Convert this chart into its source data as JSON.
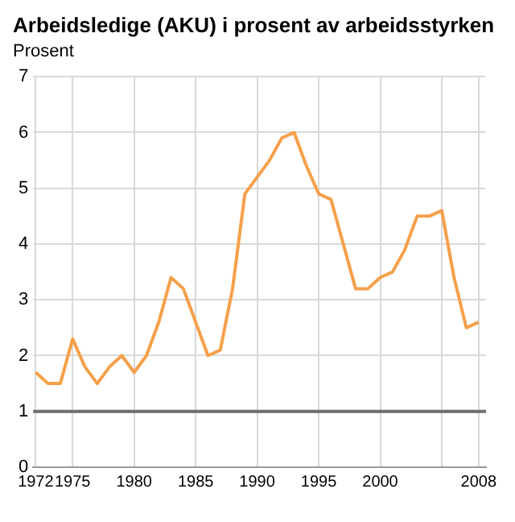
{
  "chart_data": {
    "type": "line",
    "title": "Arbeidsledige (AKU) i prosent av arbeidsstyrken",
    "ylabel": "Prosent",
    "x": [
      1972,
      1973,
      1974,
      1975,
      1976,
      1977,
      1978,
      1979,
      1980,
      1981,
      1982,
      1983,
      1984,
      1985,
      1986,
      1987,
      1988,
      1989,
      1990,
      1991,
      1992,
      1993,
      1994,
      1995,
      1996,
      1997,
      1998,
      1999,
      2000,
      2001,
      2002,
      2003,
      2004,
      2005,
      2006,
      2007,
      2008
    ],
    "series": [
      {
        "color": "#f5a04a",
        "values": [
          1.7,
          1.5,
          1.5,
          2.3,
          1.8,
          1.5,
          1.8,
          2.0,
          1.7,
          2.0,
          2.6,
          3.4,
          3.2,
          2.6,
          2.0,
          2.1,
          3.2,
          4.9,
          5.2,
          5.5,
          5.9,
          6.0,
          5.4,
          4.9,
          4.8,
          4.0,
          3.2,
          3.2,
          3.4,
          3.5,
          3.9,
          4.5,
          4.5,
          4.6,
          3.4,
          2.5,
          2.6
        ]
      }
    ],
    "xlim": [
      1971.8,
      2008.6
    ],
    "xticks": [
      1972,
      1975,
      1980,
      1985,
      1990,
      1995,
      2000,
      {
        "value": 2005,
        "label": null
      },
      2008
    ],
    "ylim": [
      0,
      7
    ],
    "yticks": [
      0,
      1,
      2,
      3,
      4,
      5,
      6,
      7
    ],
    "grid": true,
    "marker": "none",
    "line_style": "solid",
    "ref_lines": [
      {
        "axis": "y",
        "value": 1,
        "label": null,
        "color": "#6e6e6e"
      }
    ]
  }
}
